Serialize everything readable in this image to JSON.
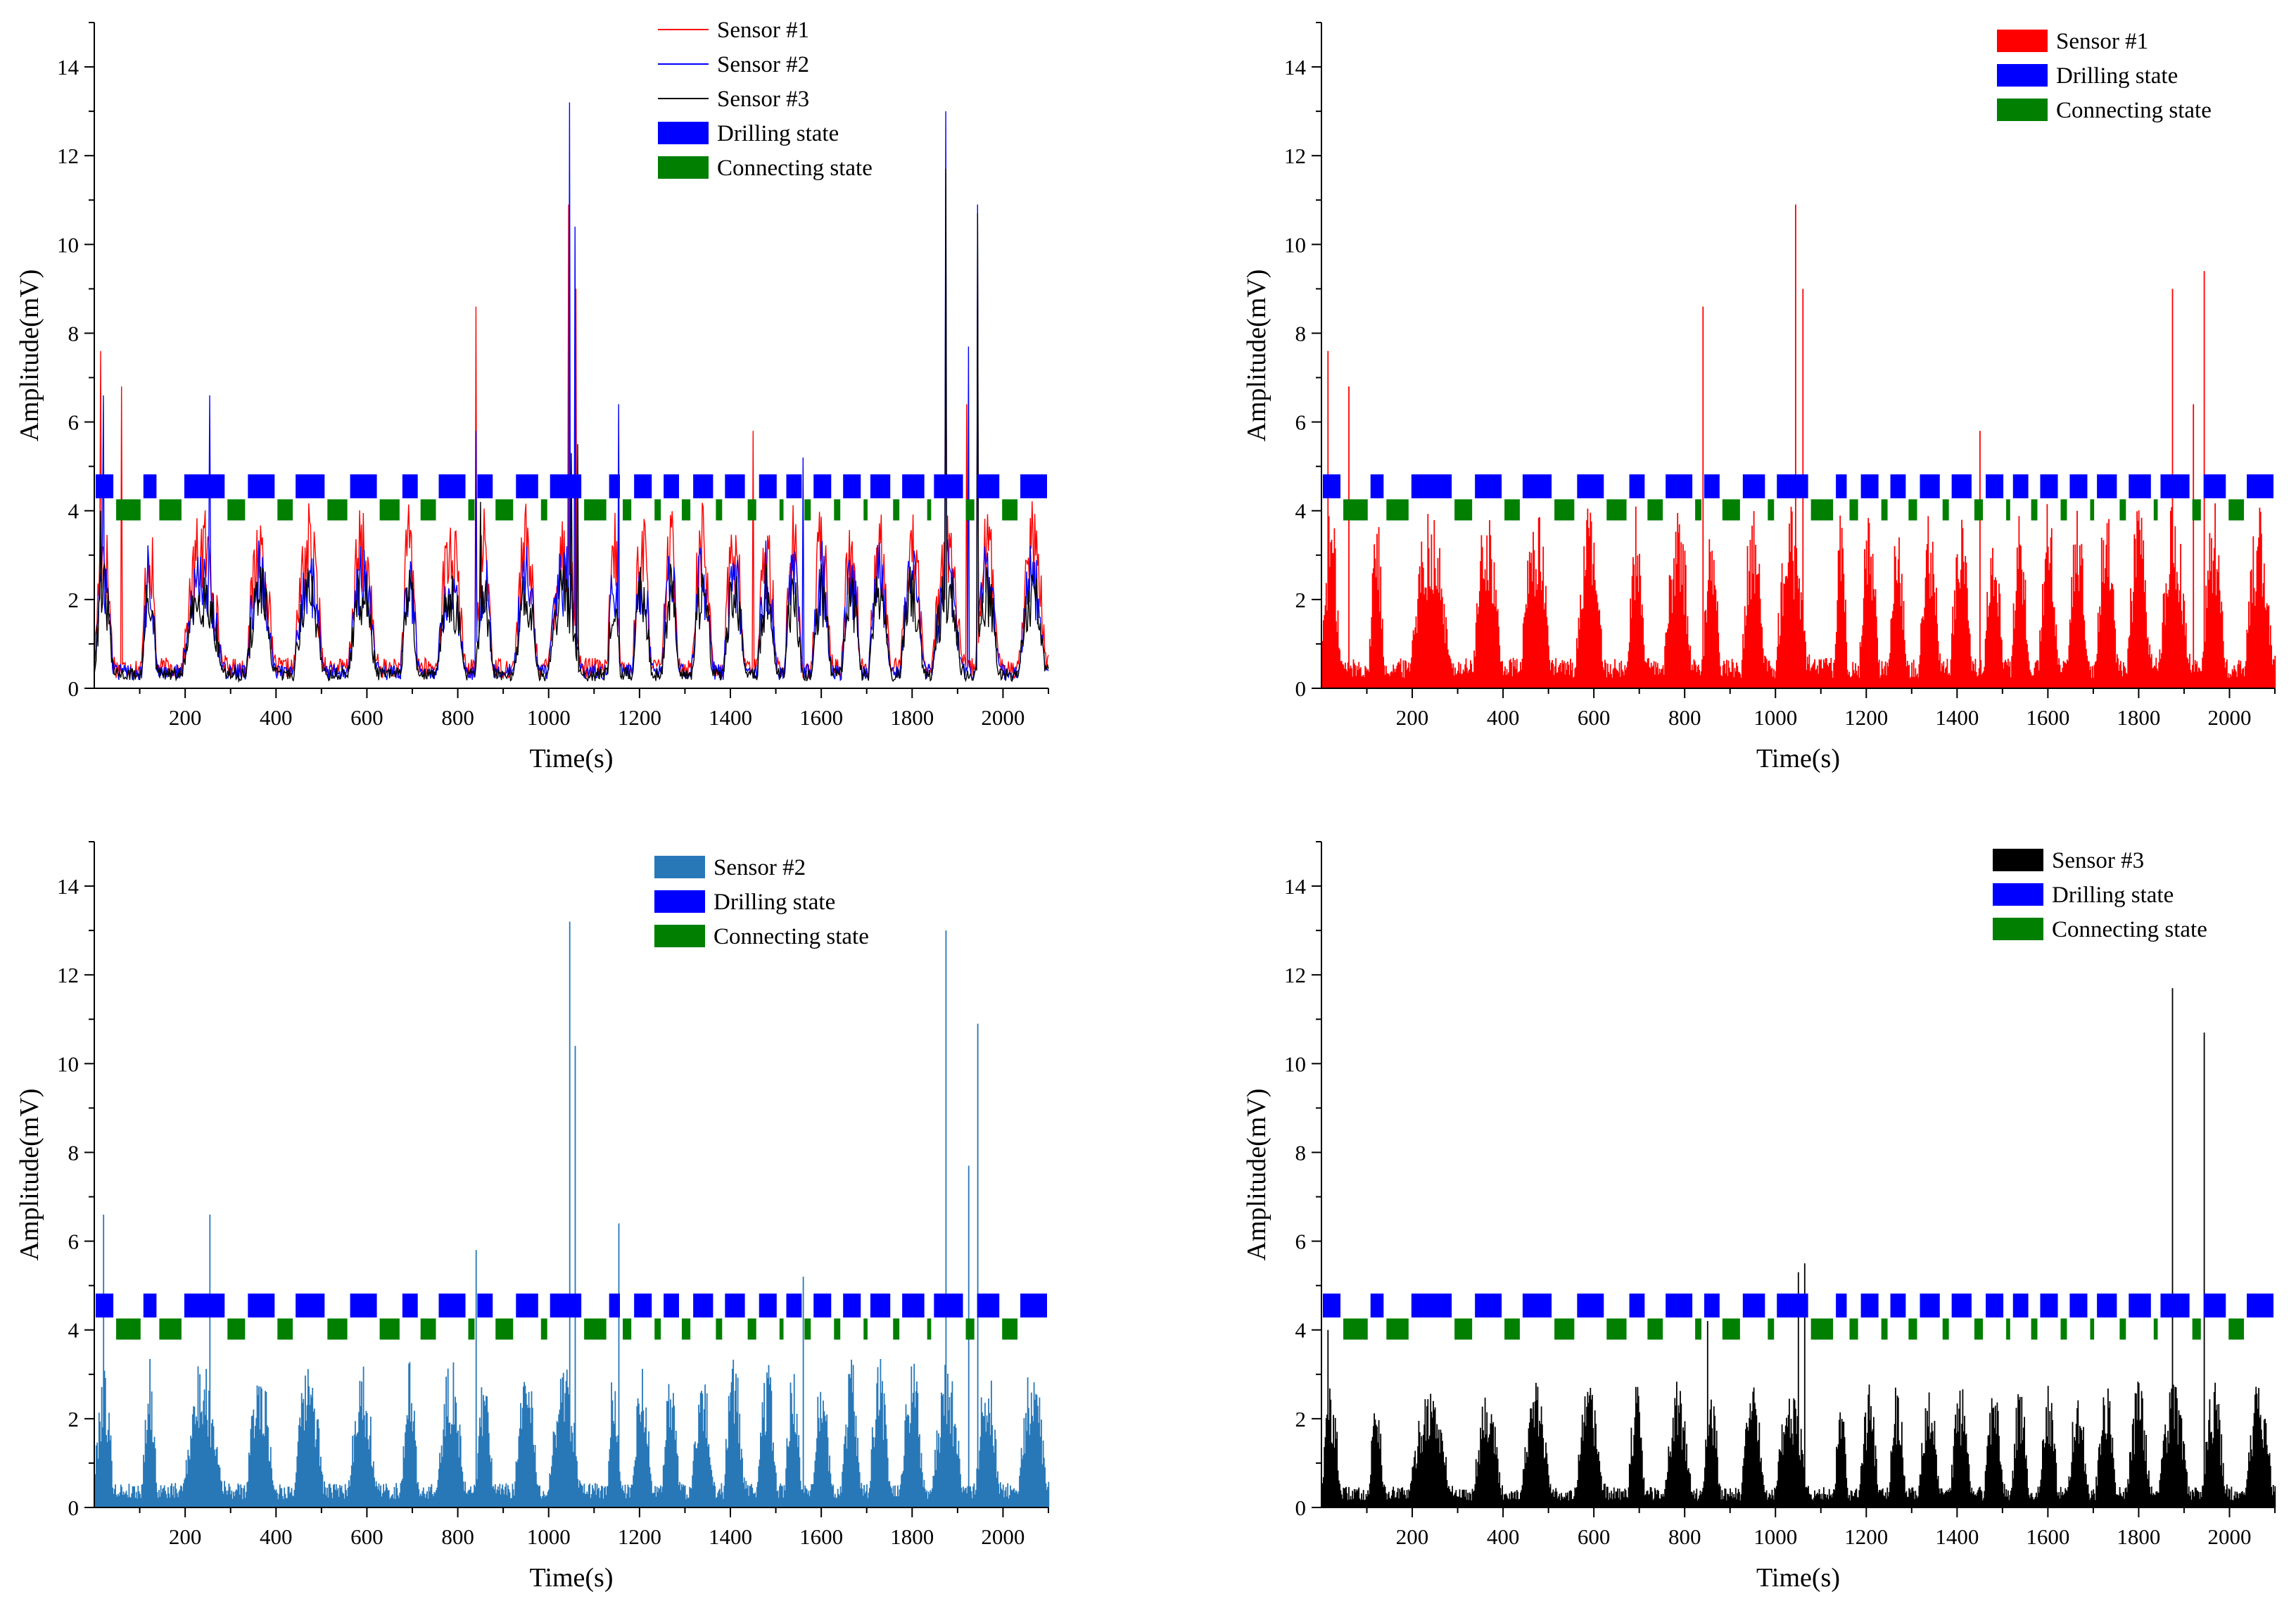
{
  "colors": {
    "sensor1": "#ff0000",
    "sensor2_line": "#0000ff",
    "sensor2_bar": "#2878b8",
    "sensor3": "#000000",
    "drilling": "#0000ff",
    "connecting": "#007f00",
    "axis": "#000000"
  },
  "chart_data": [
    {
      "id": "panel-a",
      "type": "line",
      "xlabel": "Time(s)",
      "ylabel": "Amplitude(mV)",
      "xlim": [
        0,
        2100
      ],
      "ylim": [
        0,
        15
      ],
      "xticks": [
        200,
        400,
        600,
        800,
        1000,
        1200,
        1400,
        1600,
        1800,
        2000
      ],
      "yticks": [
        0,
        2,
        4,
        6,
        8,
        10,
        12,
        14
      ],
      "legend": [
        {
          "label": "Sensor #1",
          "kind": "line",
          "color_key": "sensor1"
        },
        {
          "label": "Sensor #2",
          "kind": "line",
          "color_key": "sensor2_line"
        },
        {
          "label": "Sensor #3",
          "kind": "line",
          "color_key": "sensor3"
        },
        {
          "label": "Drilling state",
          "kind": "rect",
          "color_key": "drilling"
        },
        {
          "label": "Connecting state",
          "kind": "rect",
          "color_key": "connecting"
        }
      ],
      "series": [
        {
          "name": "Sensor #1",
          "color_key": "sensor1",
          "spikes": [
            [
              15,
              7.6
            ],
            [
              60,
              6.8
            ],
            [
              840,
              8.6
            ],
            [
              1045,
              10.9
            ],
            [
              1060,
              9.0
            ],
            [
              1450,
              5.8
            ],
            [
              1875,
              9.0
            ],
            [
              1920,
              6.4
            ],
            [
              1945,
              9.4
            ]
          ]
        },
        {
          "name": "Sensor #2",
          "color_key": "sensor2_line",
          "spikes": [
            [
              20,
              6.6
            ],
            [
              255,
              6.6
            ],
            [
              840,
              5.8
            ],
            [
              1047,
              13.2
            ],
            [
              1058,
              10.4
            ],
            [
              1155,
              6.4
            ],
            [
              1560,
              5.2
            ],
            [
              1875,
              13.0
            ],
            [
              1925,
              7.7
            ],
            [
              1945,
              10.9
            ]
          ]
        },
        {
          "name": "Sensor #3",
          "color_key": "sensor3",
          "spikes": [
            [
              15,
              4.0
            ],
            [
              850,
              4.2
            ],
            [
              1050,
              5.3
            ],
            [
              1065,
              5.5
            ],
            [
              1875,
              11.7
            ],
            [
              1945,
              10.7
            ]
          ]
        }
      ],
      "states": {
        "drilling_level": 4.55,
        "connecting_level": 4.02
      }
    },
    {
      "id": "panel-b",
      "type": "bar",
      "xlabel": "Time(s)",
      "ylabel": "Amplitude(mV)",
      "xlim": [
        0,
        2100
      ],
      "ylim": [
        0,
        15
      ],
      "xticks": [
        200,
        400,
        600,
        800,
        1000,
        1200,
        1400,
        1600,
        1800,
        2000
      ],
      "yticks": [
        0,
        2,
        4,
        6,
        8,
        10,
        12,
        14
      ],
      "legend": [
        {
          "label": "Sensor #1",
          "kind": "rect",
          "color_key": "sensor1"
        },
        {
          "label": "Drilling state",
          "kind": "rect",
          "color_key": "drilling"
        },
        {
          "label": "Connecting state",
          "kind": "rect",
          "color_key": "connecting"
        }
      ],
      "series": [
        {
          "name": "Sensor #1",
          "color_key": "sensor1",
          "spikes": [
            [
              15,
              7.6
            ],
            [
              60,
              6.8
            ],
            [
              840,
              8.6
            ],
            [
              1045,
              10.9
            ],
            [
              1060,
              9.0
            ],
            [
              1450,
              5.8
            ],
            [
              1875,
              9.0
            ],
            [
              1920,
              6.4
            ],
            [
              1945,
              9.4
            ]
          ]
        }
      ],
      "states": {
        "drilling_level": 4.55,
        "connecting_level": 4.02
      }
    },
    {
      "id": "panel-c",
      "type": "bar",
      "xlabel": "Time(s)",
      "ylabel": "Amplitude(mV)",
      "xlim": [
        0,
        2100
      ],
      "ylim": [
        0,
        15
      ],
      "xticks": [
        200,
        400,
        600,
        800,
        1000,
        1200,
        1400,
        1600,
        1800,
        2000
      ],
      "yticks": [
        0,
        2,
        4,
        6,
        8,
        10,
        12,
        14
      ],
      "legend": [
        {
          "label": "Sensor #2",
          "kind": "rect",
          "color_key": "sensor2_bar"
        },
        {
          "label": "Drilling state",
          "kind": "rect",
          "color_key": "drilling"
        },
        {
          "label": "Connecting state",
          "kind": "rect",
          "color_key": "connecting"
        }
      ],
      "series": [
        {
          "name": "Sensor #2",
          "color_key": "sensor2_bar",
          "spikes": [
            [
              20,
              6.6
            ],
            [
              255,
              6.6
            ],
            [
              840,
              5.8
            ],
            [
              1047,
              13.2
            ],
            [
              1058,
              10.4
            ],
            [
              1155,
              6.4
            ],
            [
              1560,
              5.2
            ],
            [
              1875,
              13.0
            ],
            [
              1925,
              7.7
            ],
            [
              1945,
              10.9
            ]
          ]
        }
      ],
      "states": {
        "drilling_level": 4.55,
        "connecting_level": 4.02
      }
    },
    {
      "id": "panel-d",
      "type": "bar",
      "xlabel": "Time(s)",
      "ylabel": "Amplitude(mV)",
      "xlim": [
        0,
        2100
      ],
      "ylim": [
        0,
        15
      ],
      "xticks": [
        200,
        400,
        600,
        800,
        1000,
        1200,
        1400,
        1600,
        1800,
        2000
      ],
      "yticks": [
        0,
        2,
        4,
        6,
        8,
        10,
        12,
        14
      ],
      "legend": [
        {
          "label": "Sensor #3",
          "kind": "rect",
          "color_key": "sensor3"
        },
        {
          "label": "Drilling state",
          "kind": "rect",
          "color_key": "drilling"
        },
        {
          "label": "Connecting state",
          "kind": "rect",
          "color_key": "connecting"
        }
      ],
      "series": [
        {
          "name": "Sensor #3",
          "color_key": "sensor3",
          "spikes": [
            [
              15,
              4.0
            ],
            [
              850,
              4.2
            ],
            [
              1050,
              5.3
            ],
            [
              1065,
              5.5
            ],
            [
              1875,
              11.7
            ],
            [
              1945,
              10.7
            ]
          ]
        }
      ],
      "states": {
        "drilling_level": 4.55,
        "connecting_level": 4.02
      }
    }
  ],
  "drilling_intervals": [
    [
      0,
      45
    ],
    [
      105,
      140
    ],
    [
      195,
      290
    ],
    [
      335,
      400
    ],
    [
      440,
      510
    ],
    [
      560,
      625
    ],
    [
      675,
      715
    ],
    [
      755,
      820
    ],
    [
      840,
      880
    ],
    [
      925,
      980
    ],
    [
      1000,
      1075
    ],
    [
      1130,
      1160
    ],
    [
      1185,
      1230
    ],
    [
      1250,
      1290
    ],
    [
      1315,
      1365
    ],
    [
      1385,
      1435
    ],
    [
      1460,
      1505
    ],
    [
      1520,
      1560
    ],
    [
      1580,
      1625
    ],
    [
      1645,
      1690
    ],
    [
      1705,
      1755
    ],
    [
      1775,
      1830
    ],
    [
      1845,
      1915
    ],
    [
      1940,
      1995
    ],
    [
      2035,
      2100
    ]
  ],
  "connecting_intervals": [
    [
      45,
      105
    ],
    [
      140,
      195
    ],
    [
      290,
      335
    ],
    [
      400,
      440
    ],
    [
      510,
      560
    ],
    [
      625,
      675
    ],
    [
      715,
      755
    ],
    [
      820,
      840
    ],
    [
      880,
      925
    ],
    [
      980,
      1000
    ],
    [
      1075,
      1130
    ],
    [
      1160,
      1185
    ],
    [
      1230,
      1250
    ],
    [
      1290,
      1315
    ],
    [
      1365,
      1385
    ],
    [
      1435,
      1460
    ],
    [
      1505,
      1520
    ],
    [
      1560,
      1580
    ],
    [
      1625,
      1645
    ],
    [
      1690,
      1705
    ],
    [
      1755,
      1775
    ],
    [
      1830,
      1845
    ],
    [
      1915,
      1940
    ],
    [
      1995,
      2035
    ]
  ]
}
